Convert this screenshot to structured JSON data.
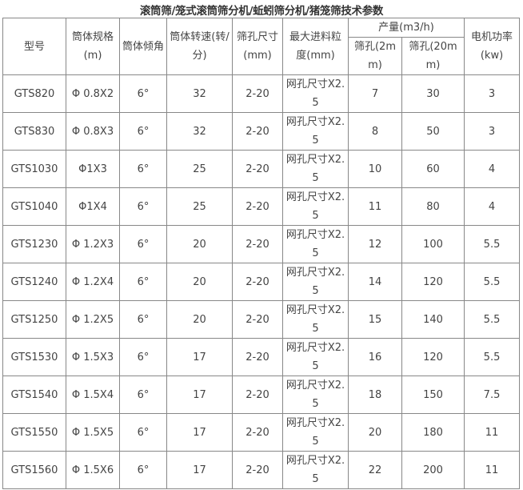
{
  "title": "滚筒筛/笼式滚筒筛分机/蚯蚓筛分机/猪笼筛技术参数",
  "headers": {
    "model": "型号",
    "spec": "筒体规格(m)",
    "angle": "筒体倾角",
    "speed": "筒体转速(转/分)",
    "hole": "筛孔尺寸(mm)",
    "feed": "最大进料粒度(mm)",
    "output": "产量(m3/h)",
    "out2": "筛孔(2mm)",
    "out20": "筛孔(20mm)",
    "power": "电机功率(kw)"
  },
  "rows": [
    [
      "GTS820",
      "Φ 0.8X2",
      "6°",
      "32",
      "2-20",
      "网孔尺寸X2.5",
      "7",
      "30",
      "3"
    ],
    [
      "GTS830",
      "Φ 0.8X3",
      "6°",
      "32",
      "2-20",
      "网孔尺寸X2.5",
      "8",
      "50",
      "3"
    ],
    [
      "GTS1030",
      "Φ1X3",
      "6°",
      "25",
      "2-20",
      "网孔尺寸X2.5",
      "10",
      "60",
      "4"
    ],
    [
      "GTS1040",
      "Φ1X4",
      "6°",
      "25",
      "2-20",
      "网孔尺寸X2.5",
      "11",
      "80",
      "4"
    ],
    [
      "GTS1230",
      "Φ 1.2X3",
      "6°",
      "20",
      "2-20",
      "网孔尺寸X2.5",
      "12",
      "100",
      "5.5"
    ],
    [
      "GTS1240",
      "Φ 1.2X4",
      "6°",
      "20",
      "2-20",
      "网孔尺寸X2.5",
      "14",
      "120",
      "5.5"
    ],
    [
      "GTS1250",
      "Φ 1.2X5",
      "6°",
      "20",
      "2-20",
      "网孔尺寸X2.5",
      "15",
      "140",
      "5.5"
    ],
    [
      "GTS1530",
      "Φ 1.5X3",
      "6°",
      "17",
      "2-20",
      "网孔尺寸X2.5",
      "16",
      "120",
      "5.5"
    ],
    [
      "GTS1540",
      "Φ 1.5X4",
      "6°",
      "17",
      "2-20",
      "网孔尺寸X2.5",
      "18",
      "150",
      "7.5"
    ],
    [
      "GTS1550",
      "Φ 1.5X5",
      "6°",
      "17",
      "2-20",
      "网孔尺寸X2.5",
      "20",
      "180",
      "11"
    ],
    [
      "GTS1560",
      "Φ 1.5X6",
      "6°",
      "17",
      "2-20",
      "网孔尺寸X2.5",
      "22",
      "200",
      "11"
    ]
  ]
}
